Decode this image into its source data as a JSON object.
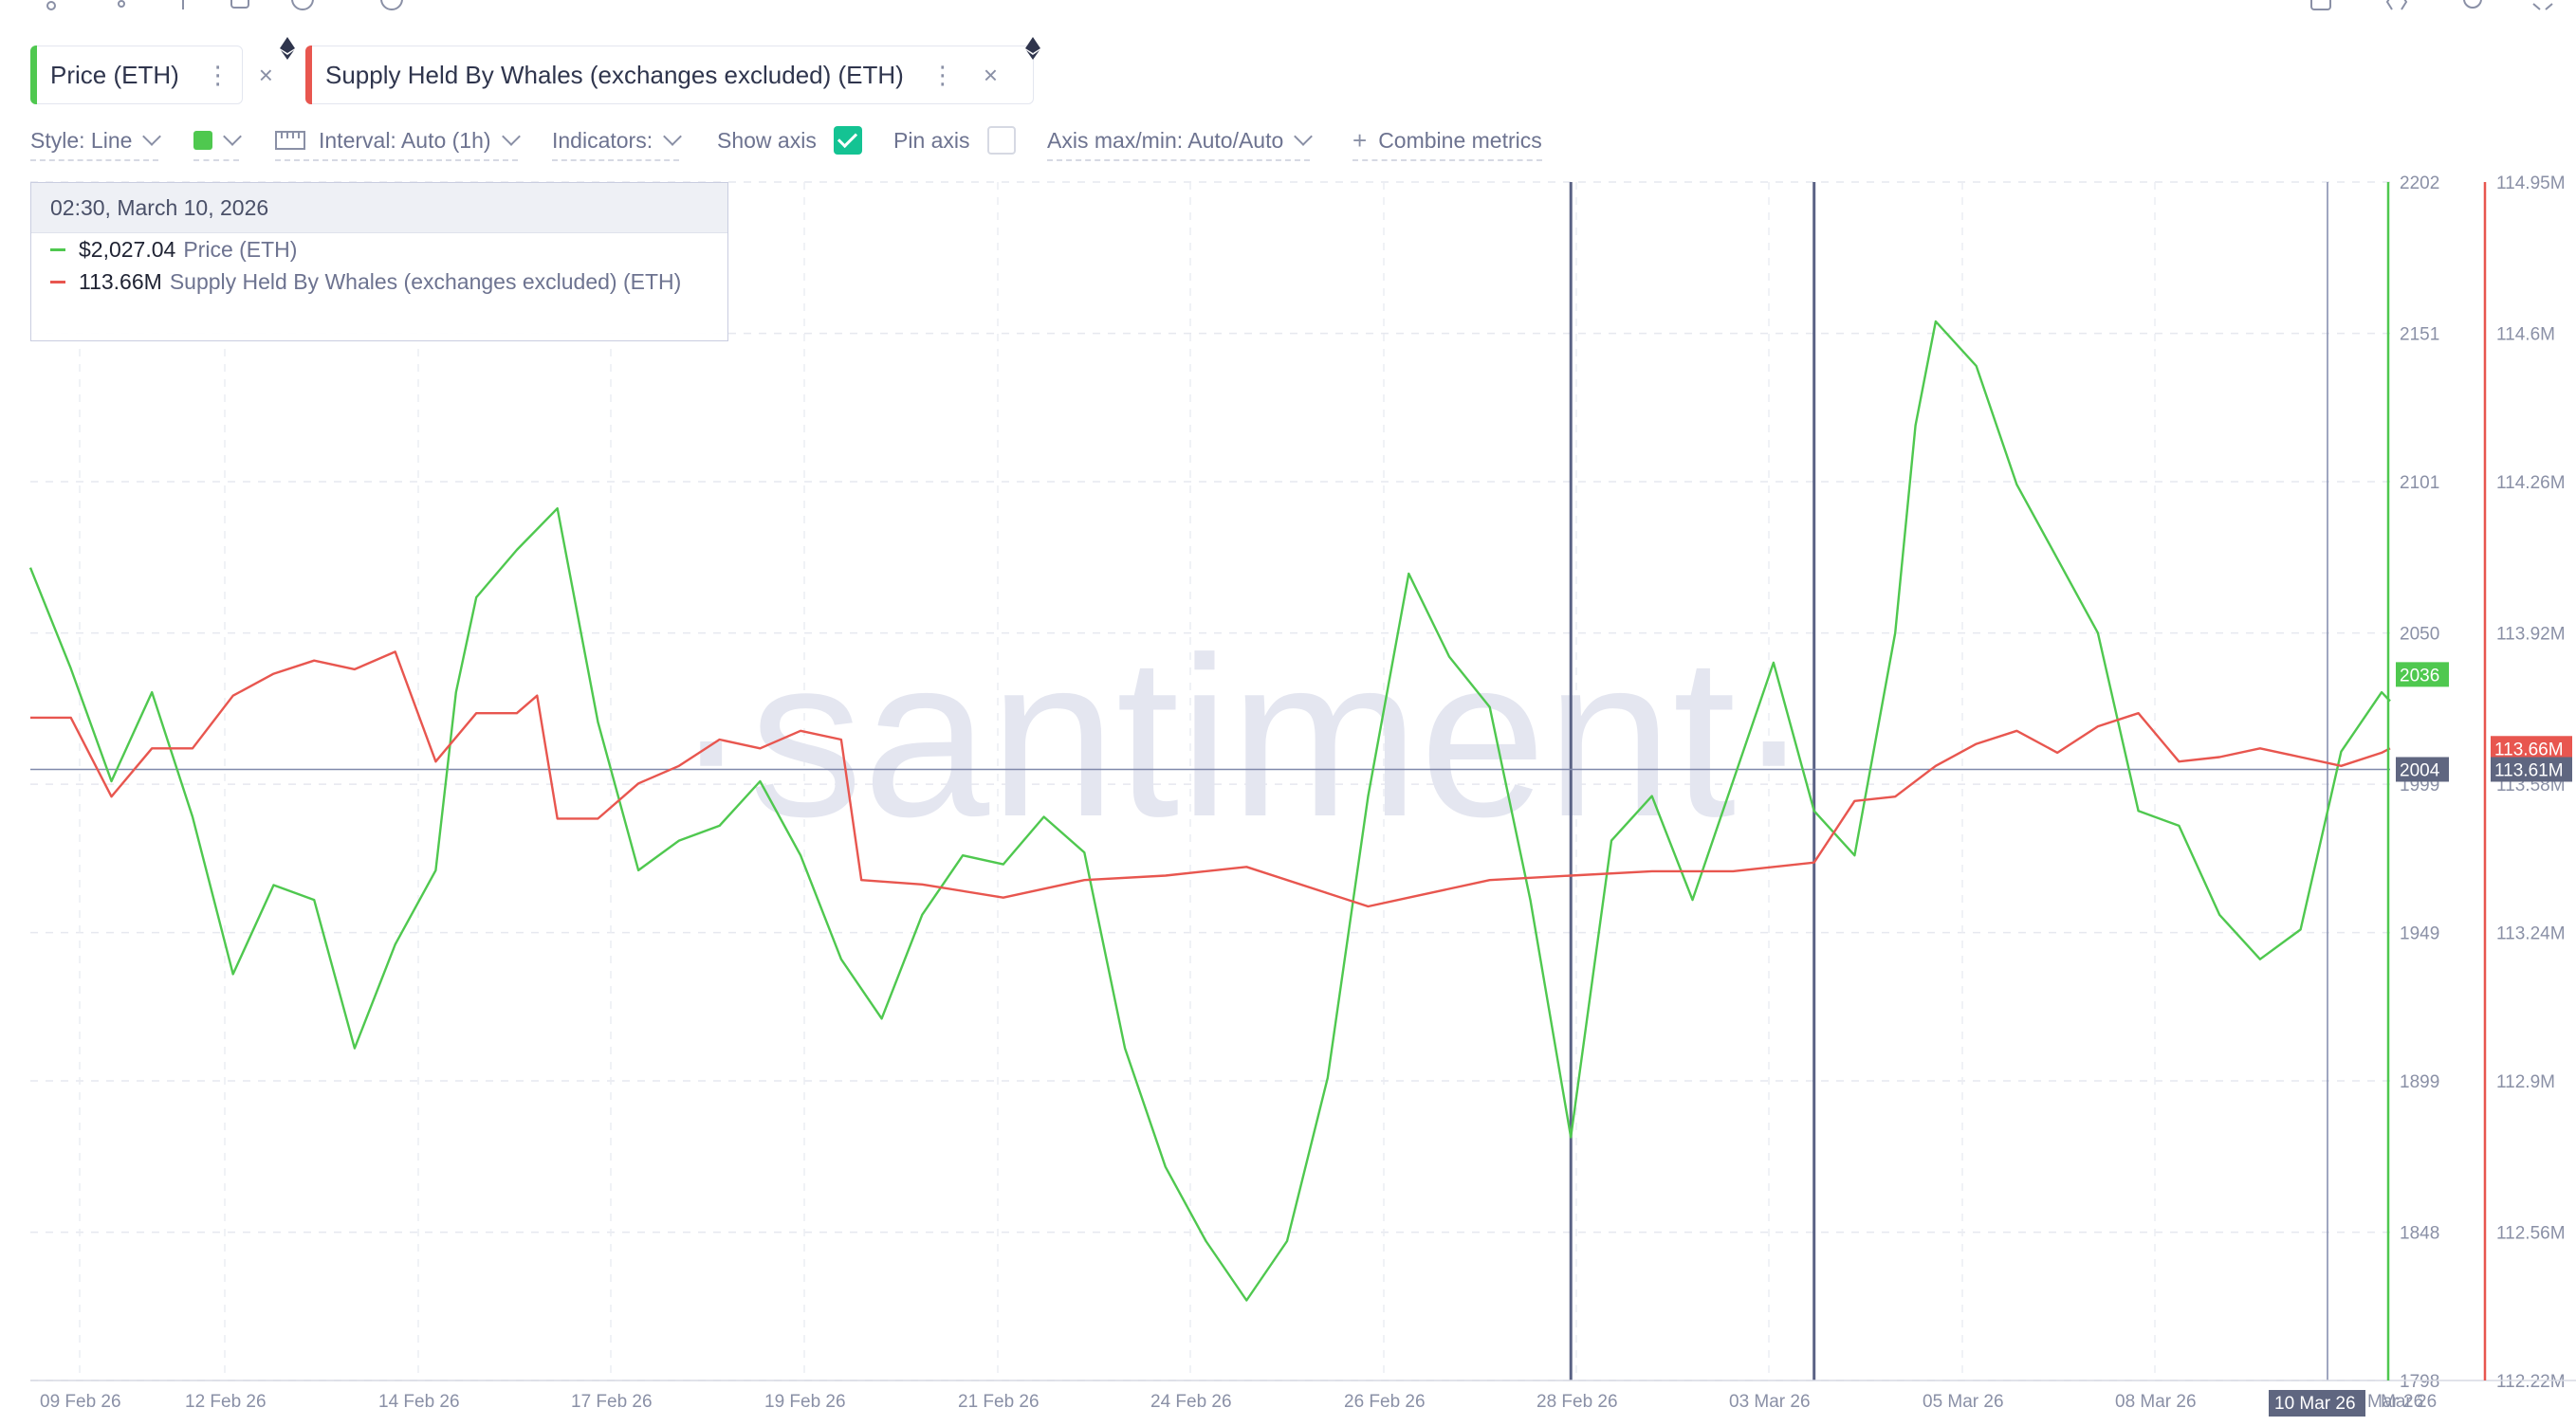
{
  "metrics": [
    {
      "label": "Price (ETH)",
      "color": "#4fc84f"
    },
    {
      "label": "Supply Held By Whales (exchanges excluded) (ETH)",
      "color": "#e8564f"
    }
  ],
  "settings": {
    "style": "Style: Line",
    "interval": "Interval: Auto (1h)",
    "indicators": "Indicators:",
    "show_axis": "Show axis",
    "pin_axis": "Pin axis",
    "axis_maxmin": "Axis max/min: Auto/Auto",
    "combine": "Combine metrics"
  },
  "tooltip": {
    "date": "02:30, March 10, 2026",
    "rows": [
      {
        "value": "$2,027.04",
        "name": "Price (ETH)",
        "color": "#4fc84f"
      },
      {
        "value": "113.66M",
        "name": "Supply Held By Whales (exchanges excluded) (ETH)",
        "color": "#e8564f"
      }
    ]
  },
  "watermark": "·santiment·",
  "chart_data": {
    "type": "line",
    "x_ticks": [
      "09 Feb 26",
      "12 Feb 26",
      "14 Feb 26",
      "17 Feb 26",
      "19 Feb 26",
      "21 Feb 26",
      "24 Feb 26",
      "26 Feb 26",
      "28 Feb 26",
      "03 Mar 26",
      "05 Mar 26",
      "08 Mar 26",
      "10 Mar 26",
      "Mar 26"
    ],
    "x_range": [
      "2026-02-09",
      "2026-03-10"
    ],
    "price_axis": {
      "ticks": [
        2202,
        2151,
        2101,
        2050,
        1999,
        1949,
        1899,
        1848,
        1798
      ],
      "ylim": [
        1798,
        2202
      ],
      "color": "#4fc84f"
    },
    "supply_axis": {
      "ticks": [
        "114.95M",
        "114.6M",
        "114.26M",
        "113.92M",
        "113.58M",
        "113.24M",
        "112.9M",
        "112.56M",
        "112.22M"
      ],
      "ylim": [
        112.22,
        114.95
      ],
      "color": "#e8564f"
    },
    "price_label": "2036",
    "crosshair_label": "2004",
    "supply_label": "113.66M",
    "supply_crosshair_label": "113.61M",
    "highlight_x_label": "10 Mar 26",
    "markers": [
      "2026-02-28",
      "2026-03-03"
    ],
    "series": [
      {
        "name": "Price (ETH)",
        "axis": "price",
        "color": "#4fc84f",
        "points": [
          [
            "2026-02-09",
            2072
          ],
          [
            "2026-02-09T12:00",
            2038
          ],
          [
            "2026-02-10",
            2000
          ],
          [
            "2026-02-10T12:00",
            2030
          ],
          [
            "2026-02-11",
            1988
          ],
          [
            "2026-02-11T12:00",
            1935
          ],
          [
            "2026-02-12",
            1965
          ],
          [
            "2026-02-12T12:00",
            1960
          ],
          [
            "2026-02-13",
            1910
          ],
          [
            "2026-02-13T12:00",
            1945
          ],
          [
            "2026-02-14",
            1970
          ],
          [
            "2026-02-14T06:00",
            2030
          ],
          [
            "2026-02-14T12:00",
            2062
          ],
          [
            "2026-02-15",
            2078
          ],
          [
            "2026-02-15T12:00",
            2092
          ],
          [
            "2026-02-16",
            2020
          ],
          [
            "2026-02-16T12:00",
            1970
          ],
          [
            "2026-02-17",
            1980
          ],
          [
            "2026-02-17T12:00",
            1985
          ],
          [
            "2026-02-18",
            2000
          ],
          [
            "2026-02-18T12:00",
            1975
          ],
          [
            "2026-02-19",
            1940
          ],
          [
            "2026-02-19T12:00",
            1920
          ],
          [
            "2026-02-20",
            1955
          ],
          [
            "2026-02-20T12:00",
            1975
          ],
          [
            "2026-02-21",
            1972
          ],
          [
            "2026-02-21T12:00",
            1988
          ],
          [
            "2026-02-22",
            1976
          ],
          [
            "2026-02-22T12:00",
            1910
          ],
          [
            "2026-02-23",
            1870
          ],
          [
            "2026-02-23T12:00",
            1845
          ],
          [
            "2026-02-24",
            1825
          ],
          [
            "2026-02-24T12:00",
            1845
          ],
          [
            "2026-02-25",
            1900
          ],
          [
            "2026-02-25T12:00",
            1995
          ],
          [
            "2026-02-26",
            2070
          ],
          [
            "2026-02-26T12:00",
            2042
          ],
          [
            "2026-02-27",
            2025
          ],
          [
            "2026-02-27T12:00",
            1960
          ],
          [
            "2026-02-28",
            1880
          ],
          [
            "2026-02-28T12:00",
            1980
          ],
          [
            "2026-03-01",
            1995
          ],
          [
            "2026-03-01T12:00",
            1960
          ],
          [
            "2026-03-02",
            2000
          ],
          [
            "2026-03-02T12:00",
            2040
          ],
          [
            "2026-03-03",
            1990
          ],
          [
            "2026-03-03T12:00",
            1975
          ],
          [
            "2026-03-04",
            2050
          ],
          [
            "2026-03-04T06:00",
            2120
          ],
          [
            "2026-03-04T12:00",
            2155
          ],
          [
            "2026-03-05",
            2140
          ],
          [
            "2026-03-05T12:00",
            2100
          ],
          [
            "2026-03-06",
            2075
          ],
          [
            "2026-03-06T12:00",
            2050
          ],
          [
            "2026-03-07",
            1990
          ],
          [
            "2026-03-07T12:00",
            1985
          ],
          [
            "2026-03-08",
            1955
          ],
          [
            "2026-03-08T12:00",
            1940
          ],
          [
            "2026-03-09",
            1950
          ],
          [
            "2026-03-09T12:00",
            2010
          ],
          [
            "2026-03-10",
            2030
          ],
          [
            "2026-03-10T02:30",
            2027
          ]
        ]
      },
      {
        "name": "Supply Held By Whales (exchanges excluded) (ETH)",
        "axis": "supply",
        "color": "#e8564f",
        "points": [
          [
            "2026-02-09",
            113.73
          ],
          [
            "2026-02-09T12:00",
            113.73
          ],
          [
            "2026-02-10",
            113.55
          ],
          [
            "2026-02-10T12:00",
            113.66
          ],
          [
            "2026-02-11",
            113.66
          ],
          [
            "2026-02-11T12:00",
            113.78
          ],
          [
            "2026-02-12",
            113.83
          ],
          [
            "2026-02-12T12:00",
            113.86
          ],
          [
            "2026-02-13",
            113.84
          ],
          [
            "2026-02-13T12:00",
            113.88
          ],
          [
            "2026-02-14",
            113.63
          ],
          [
            "2026-02-14T12:00",
            113.74
          ],
          [
            "2026-02-15",
            113.74
          ],
          [
            "2026-02-15T06:00",
            113.78
          ],
          [
            "2026-02-15T12:00",
            113.5
          ],
          [
            "2026-02-16",
            113.5
          ],
          [
            "2026-02-16T12:00",
            113.58
          ],
          [
            "2026-02-17",
            113.62
          ],
          [
            "2026-02-17T12:00",
            113.68
          ],
          [
            "2026-02-18",
            113.66
          ],
          [
            "2026-02-18T12:00",
            113.7
          ],
          [
            "2026-02-19",
            113.68
          ],
          [
            "2026-02-19T06:00",
            113.36
          ],
          [
            "2026-02-20",
            113.35
          ],
          [
            "2026-02-21",
            113.32
          ],
          [
            "2026-02-22",
            113.36
          ],
          [
            "2026-02-23",
            113.37
          ],
          [
            "2026-02-24",
            113.39
          ],
          [
            "2026-02-25",
            113.33
          ],
          [
            "2026-02-25T12:00",
            113.3
          ],
          [
            "2026-02-26",
            113.32
          ],
          [
            "2026-02-27",
            113.36
          ],
          [
            "2026-02-28",
            113.37
          ],
          [
            "2026-03-01",
            113.38
          ],
          [
            "2026-03-02",
            113.38
          ],
          [
            "2026-03-03",
            113.4
          ],
          [
            "2026-03-03T12:00",
            113.54
          ],
          [
            "2026-03-04",
            113.55
          ],
          [
            "2026-03-04T12:00",
            113.62
          ],
          [
            "2026-03-05",
            113.67
          ],
          [
            "2026-03-05T12:00",
            113.7
          ],
          [
            "2026-03-06",
            113.65
          ],
          [
            "2026-03-06T12:00",
            113.71
          ],
          [
            "2026-03-07",
            113.74
          ],
          [
            "2026-03-07T12:00",
            113.63
          ],
          [
            "2026-03-08",
            113.64
          ],
          [
            "2026-03-08T12:00",
            113.66
          ],
          [
            "2026-03-09",
            113.64
          ],
          [
            "2026-03-09T12:00",
            113.62
          ],
          [
            "2026-03-10",
            113.65
          ],
          [
            "2026-03-10T02:30",
            113.66
          ]
        ]
      }
    ]
  }
}
